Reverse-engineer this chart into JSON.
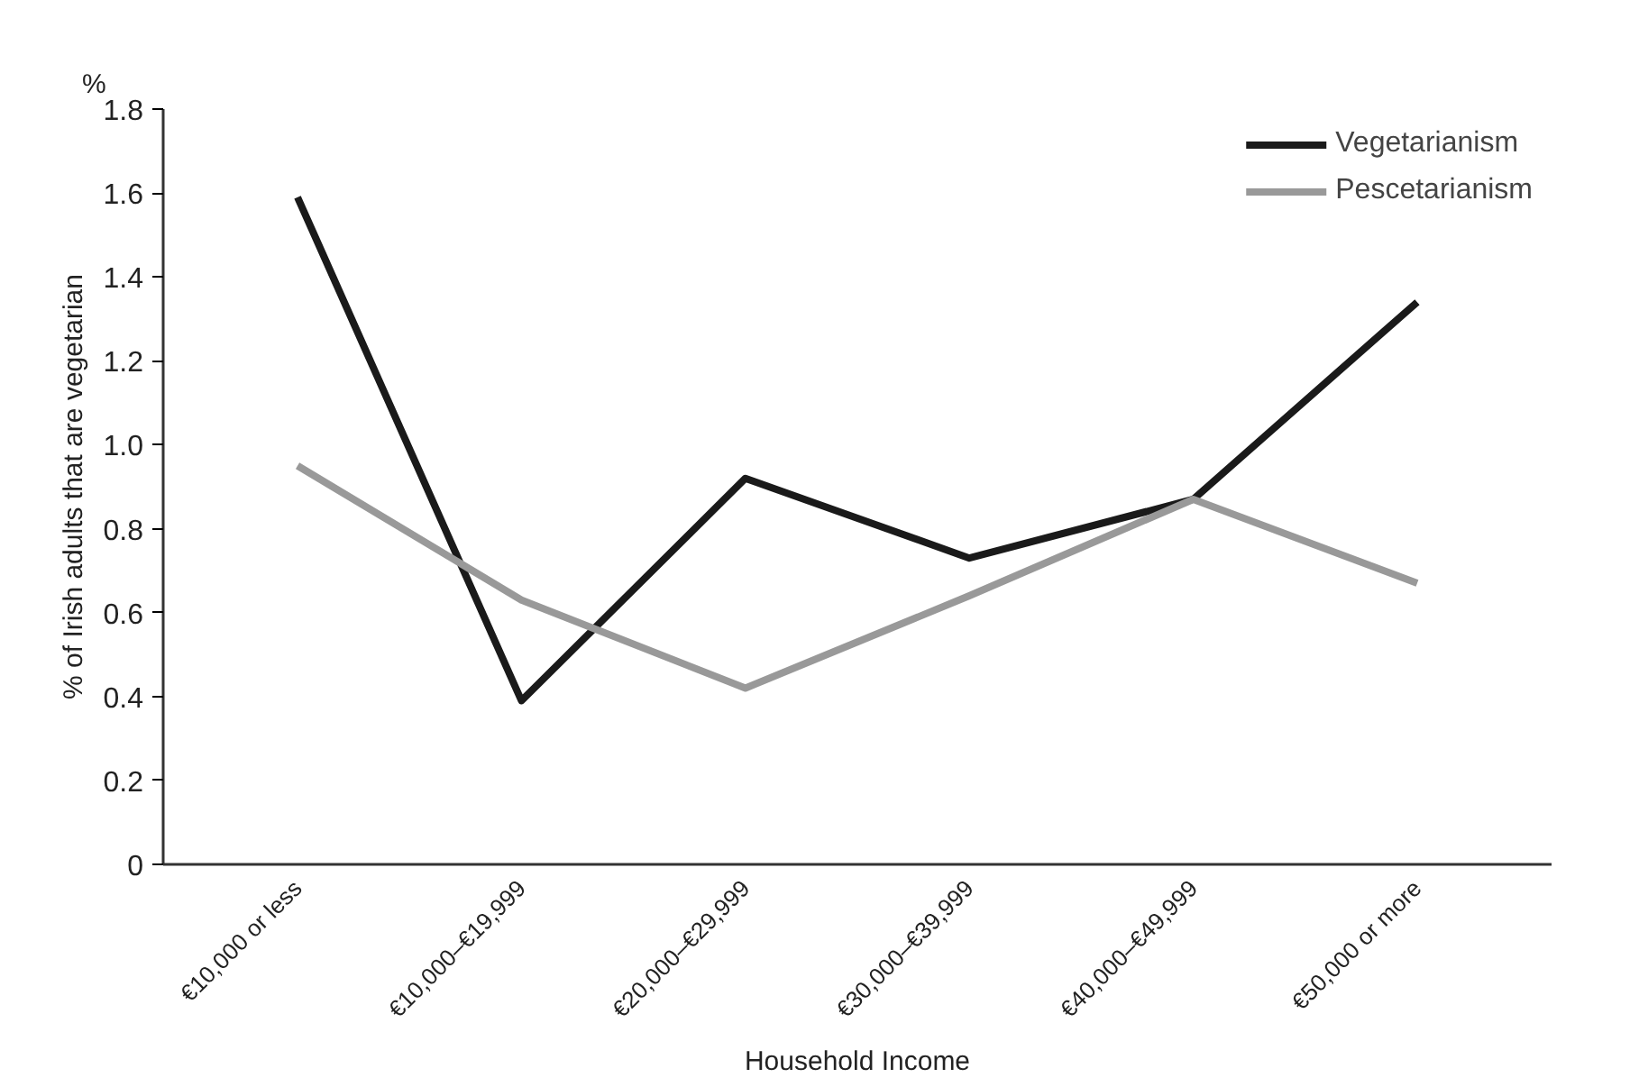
{
  "chart_data": {
    "type": "line",
    "xlabel": "Household Income",
    "ylabel": "% of Irish adults that are vegetarian",
    "annotations": [
      "%"
    ],
    "categories": [
      "€10,000 or less",
      "€10,000–€19,999",
      "€20,000–€29,999",
      "€30,000–€39,999",
      "€40,000–€49,999",
      "€50,000 or more"
    ],
    "series": [
      {
        "name": "Vegetarianism",
        "color": "#1a1a1a",
        "values": [
          1.59,
          0.39,
          0.92,
          0.73,
          0.87,
          1.34
        ]
      },
      {
        "name": "Pescetarianism",
        "color": "#999999",
        "values": [
          0.95,
          0.63,
          0.42,
          0.64,
          0.87,
          0.67
        ]
      }
    ],
    "ylim": [
      0,
      1.8
    ],
    "yticks": [
      0,
      0.2,
      0.4,
      0.6,
      0.8,
      {
        "value": 1,
        "label": "1.0"
      },
      1.2,
      1.4,
      1.6,
      1.8
    ],
    "legend": "top right",
    "grid": false,
    "marker": "none",
    "line_style": "solid"
  }
}
